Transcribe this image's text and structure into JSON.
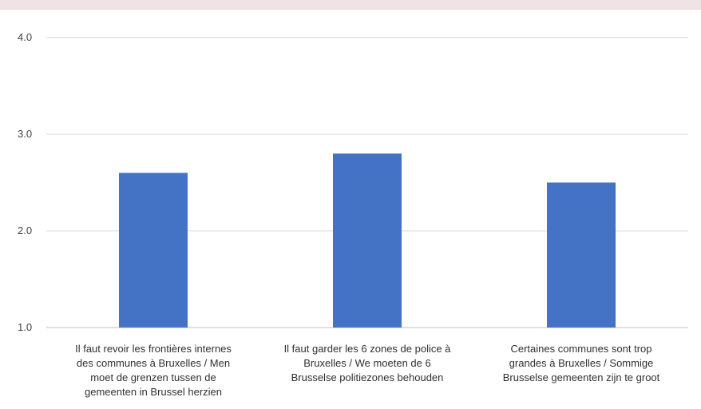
{
  "chart_data": {
    "type": "bar",
    "title": "",
    "xlabel": "",
    "ylabel": "",
    "ylim": [
      1.0,
      4.0
    ],
    "yticks": [
      "1.0",
      "2.0",
      "3.0",
      "4.0"
    ],
    "grid": true,
    "bar_color": "#4472c4",
    "categories": [
      [
        "Il faut revoir les frontières internes",
        "des communes à Bruxelles / Men",
        "moet de grenzen tussen de",
        "gemeenten in Brussel herzien"
      ],
      [
        "Il faut garder les 6 zones de police à",
        "Bruxelles / We moeten de 6",
        "Brusselse politiezones behouden"
      ],
      [
        "Certaines communes sont trop",
        "grandes à Bruxelles / Sommige",
        "Brusselse gemeenten zijn te groot"
      ]
    ],
    "values": [
      2.6,
      2.8,
      2.5
    ]
  }
}
